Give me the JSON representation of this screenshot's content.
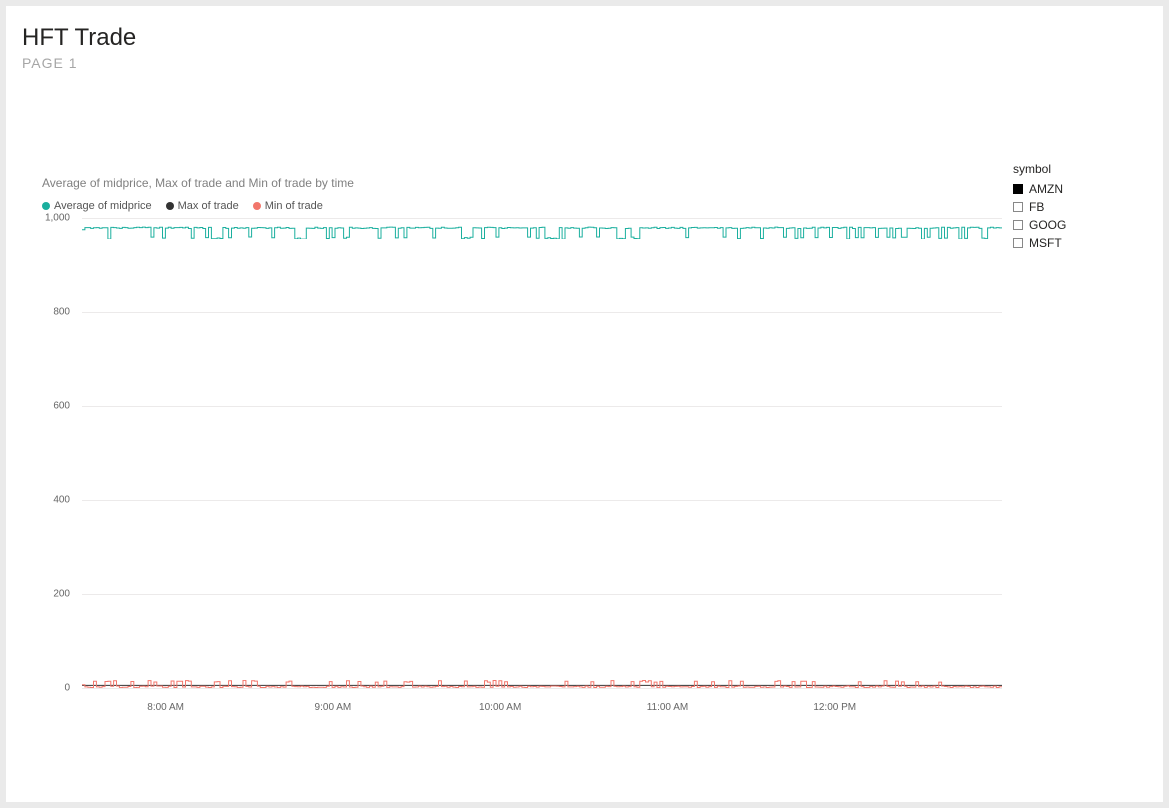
{
  "header": {
    "title": "HFT Trade",
    "subtitle": "PAGE 1"
  },
  "chart": {
    "type": "line",
    "title": "Average of midprice, Max of trade and Min of trade by time",
    "title_fontsize": 12,
    "title_color": "#808080",
    "background_color": "#ffffff",
    "grid_color": "#eceaea",
    "axis_label_color": "#666666",
    "axis_label_fontsize": 10,
    "legend_fontsize": 11,
    "y": {
      "min": 0,
      "max": 1000,
      "tick_step": 200,
      "ticks": [
        {
          "value": 0,
          "label": "0"
        },
        {
          "value": 200,
          "label": "200"
        },
        {
          "value": 400,
          "label": "400"
        },
        {
          "value": 600,
          "label": "600"
        },
        {
          "value": 800,
          "label": "800"
        },
        {
          "value": 1000,
          "label": "1,000"
        }
      ]
    },
    "x": {
      "domain_start_min": 450,
      "domain_end_min": 780,
      "ticks": [
        {
          "minute": 480,
          "label": "8:00 AM"
        },
        {
          "minute": 540,
          "label": "9:00 AM"
        },
        {
          "minute": 600,
          "label": "10:00 AM"
        },
        {
          "minute": 660,
          "label": "11:00 AM"
        },
        {
          "minute": 720,
          "label": "12:00 PM"
        }
      ]
    },
    "series": [
      {
        "name": "Average of midprice",
        "color": "#1aaf9e",
        "line_width": 1,
        "band_center": 975,
        "band_low": 955,
        "band_high": 985,
        "jitter_density": 320
      },
      {
        "name": "Max of trade",
        "color": "#333333",
        "line_width": 1,
        "band_center": 5,
        "band_low": 2,
        "band_high": 8,
        "jitter_density": 0
      },
      {
        "name": "Min of trade",
        "color": "#f2766b",
        "line_width": 1,
        "band_center": 8,
        "band_low": 0,
        "band_high": 18,
        "jitter_density": 320
      }
    ]
  },
  "slicer": {
    "title": "symbol",
    "items": [
      {
        "label": "AMZN",
        "checked": true
      },
      {
        "label": "FB",
        "checked": false
      },
      {
        "label": "GOOG",
        "checked": false
      },
      {
        "label": "MSFT",
        "checked": false
      }
    ]
  }
}
